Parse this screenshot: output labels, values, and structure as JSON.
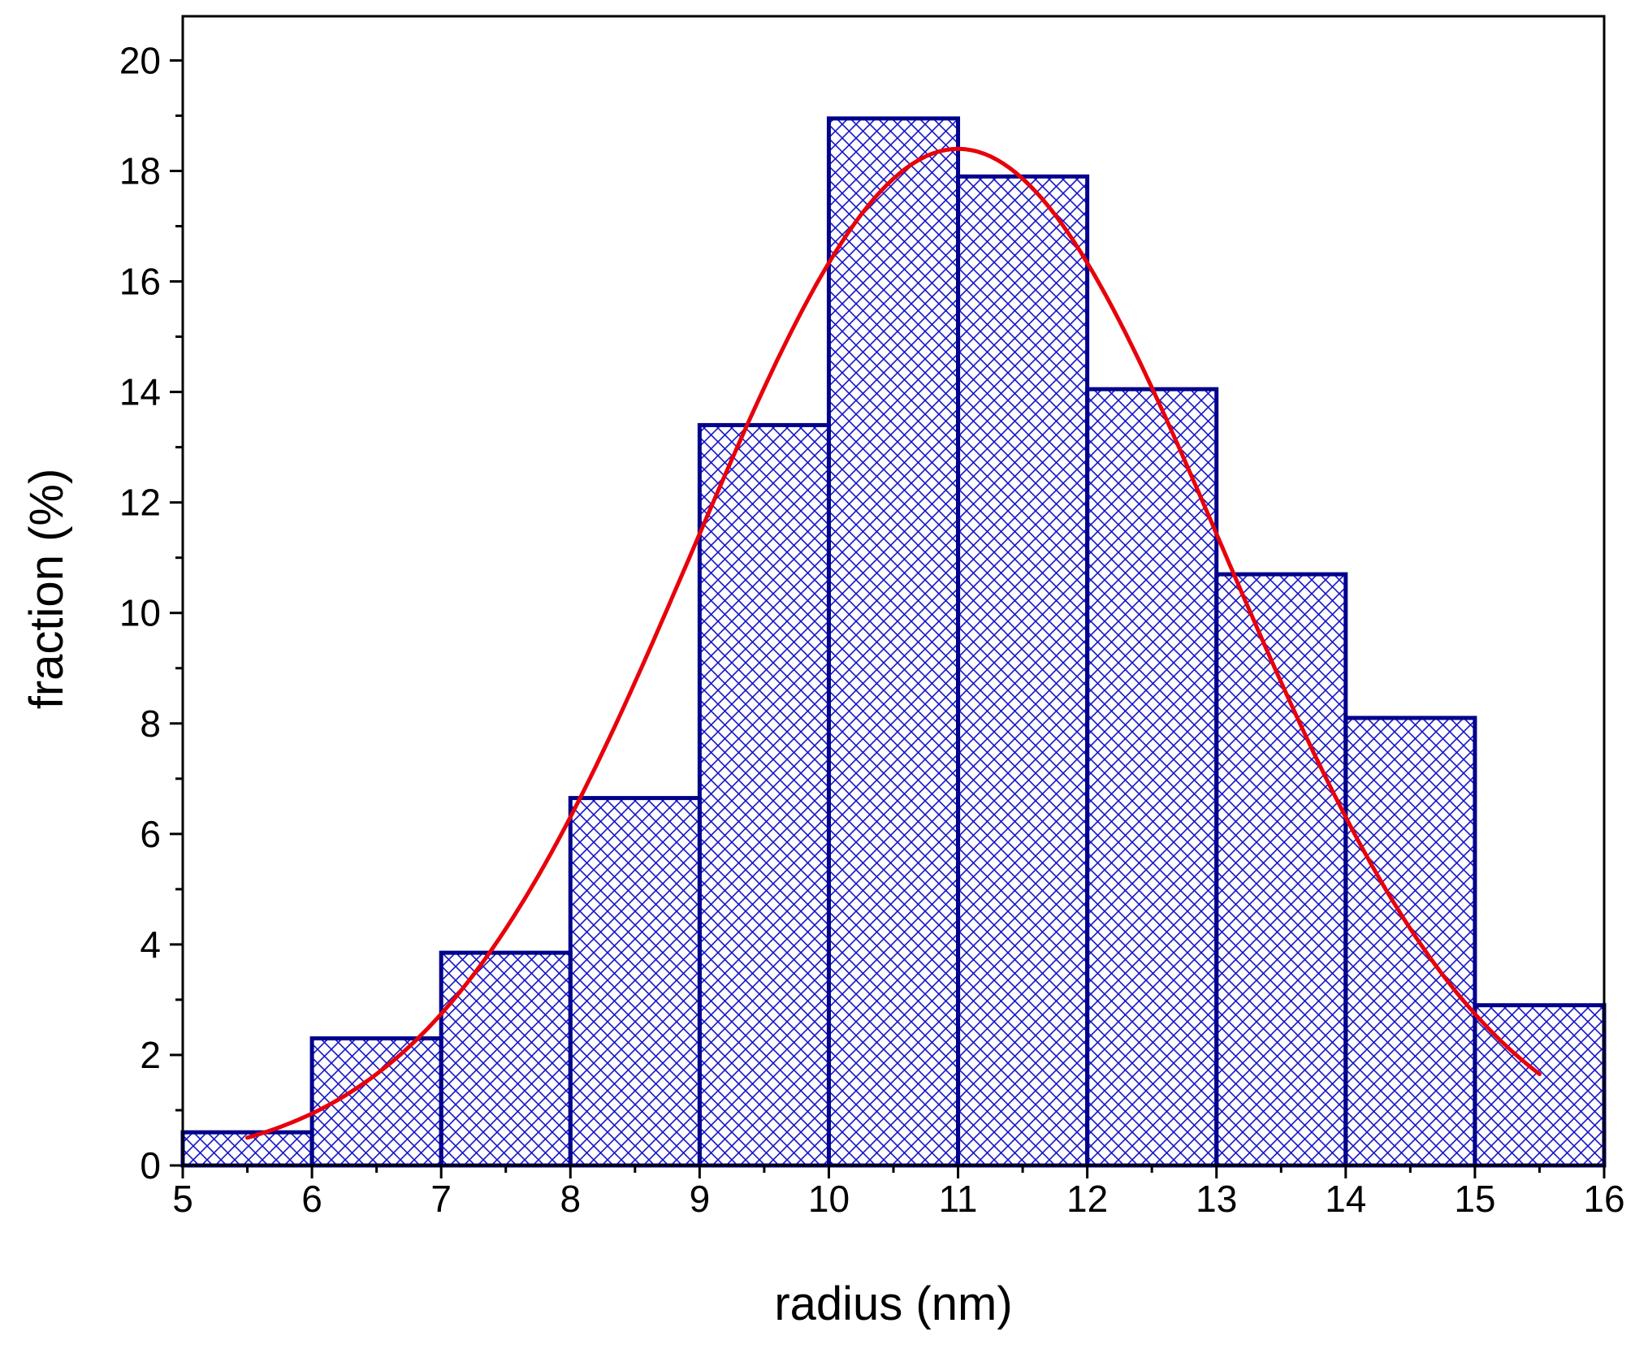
{
  "chart_data": {
    "type": "bar",
    "title": "",
    "xlabel": "radius (nm)",
    "ylabel": "fraction (%)",
    "xlim": [
      5,
      16
    ],
    "ylim": [
      0,
      20.8
    ],
    "x_ticks": [
      "5",
      "6",
      "7",
      "8",
      "9",
      "10",
      "11",
      "12",
      "13",
      "14",
      "15",
      "16"
    ],
    "y_ticks": [
      "0",
      "2",
      "4",
      "6",
      "8",
      "10",
      "12",
      "14",
      "16",
      "18",
      "20"
    ],
    "grid": false,
    "bins": [
      {
        "x0": 5,
        "x1": 6,
        "value": 0.6
      },
      {
        "x0": 6,
        "x1": 7,
        "value": 2.3
      },
      {
        "x0": 7,
        "x1": 8,
        "value": 3.85
      },
      {
        "x0": 8,
        "x1": 9,
        "value": 6.65
      },
      {
        "x0": 9,
        "x1": 10,
        "value": 13.4
      },
      {
        "x0": 10,
        "x1": 11,
        "value": 18.95
      },
      {
        "x0": 11,
        "x1": 12,
        "value": 17.9
      },
      {
        "x0": 12,
        "x1": 13,
        "value": 14.05
      },
      {
        "x0": 13,
        "x1": 14,
        "value": 10.7
      },
      {
        "x0": 14,
        "x1": 15,
        "value": 8.1
      },
      {
        "x0": 15,
        "x1": 16,
        "value": 2.9
      }
    ],
    "fit_curve": {
      "type": "gaussian",
      "amplitude": 18.4,
      "center": 11.0,
      "sigma": 2.05,
      "x_range": [
        5.5,
        15.5
      ],
      "color": "#e8000b"
    },
    "bar_color": "#00008b",
    "fill_pattern": "crosshatch"
  }
}
